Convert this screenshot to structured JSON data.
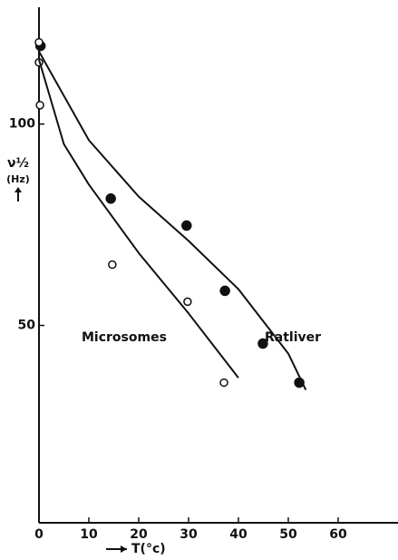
{
  "chart_data": {
    "type": "scatter",
    "xlabel": "T(°c)",
    "ylabel": [
      "ν½",
      "(Hz)"
    ],
    "annotations": [
      "Microsomes",
      "Ratliver"
    ],
    "xlim": [
      0,
      72
    ],
    "ylim": [
      1,
      129
    ],
    "xticks": [
      0,
      10,
      20,
      30,
      40,
      50,
      60
    ],
    "yticks": [
      50,
      100
    ],
    "color": "#111111",
    "series": [
      {
        "marker": "filled",
        "x": [
          0.3,
          14.4,
          29.6,
          37.3,
          44.9,
          52.2
        ],
        "values": [
          119.4,
          81.5,
          74.8,
          58.6,
          45.5,
          35.8
        ]
      },
      {
        "marker": "open",
        "x": [
          0,
          0,
          0.2,
          14.7,
          29.8,
          37.1
        ],
        "values": [
          120.3,
          115.3,
          104.7,
          65.1,
          55.9,
          35.8
        ]
      },
      {
        "marker": "none",
        "x": [
          0,
          10,
          20,
          30,
          40,
          45,
          50,
          53.5
        ],
        "values": [
          118,
          96,
          82,
          71,
          59,
          51,
          43,
          34
        ]
      },
      {
        "marker": "none",
        "x": [
          0,
          5,
          10,
          20,
          30,
          40
        ],
        "values": [
          116,
          95,
          85,
          68,
          53,
          37
        ]
      }
    ]
  }
}
